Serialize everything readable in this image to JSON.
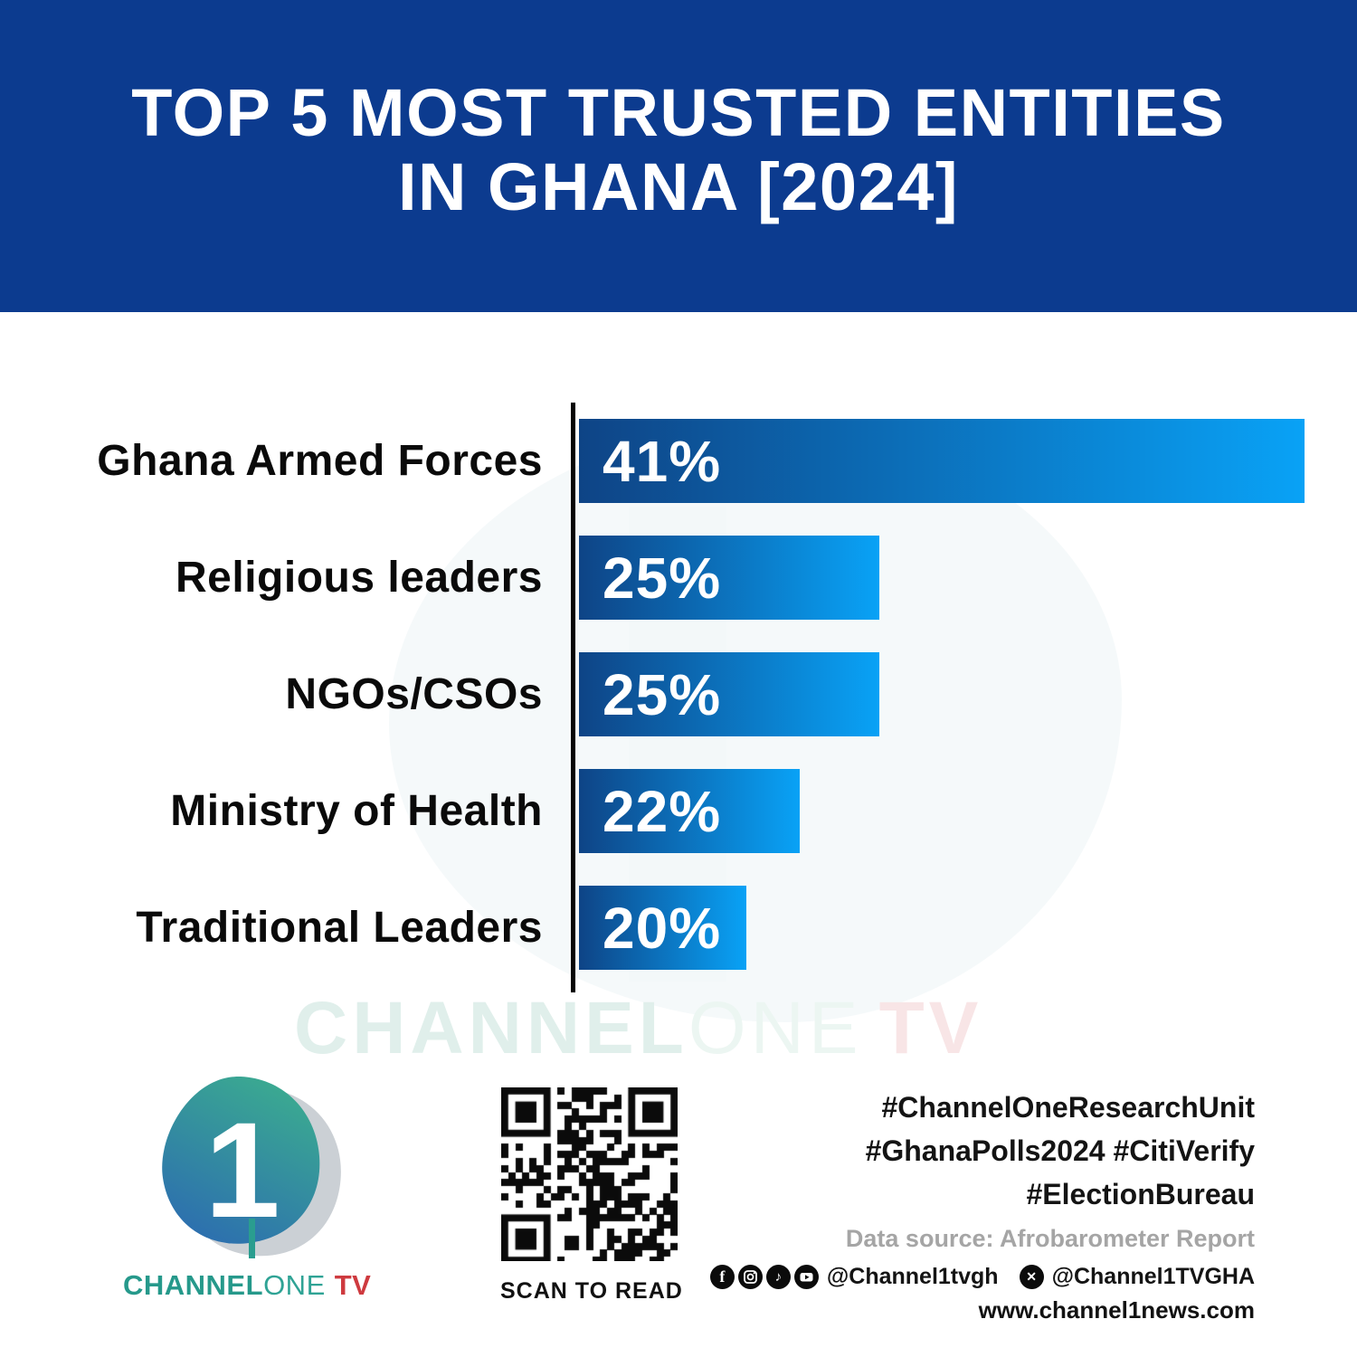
{
  "header": {
    "title_line1": "TOP 5 MOST TRUSTED ENTITIES",
    "title_line2": "IN GHANA [2024]",
    "banner_color": "#0c3b8f",
    "title_color": "#ffffff"
  },
  "chart_data": {
    "type": "bar",
    "orientation": "horizontal",
    "categories": [
      "Ghana Armed Forces",
      "Religious leaders",
      "NGOs/CSOs",
      "Ministry of Health",
      "Traditional Leaders"
    ],
    "values": [
      41,
      25,
      25,
      22,
      20
    ],
    "unit": "%",
    "value_labels": [
      "41%",
      "25%",
      "25%",
      "22%",
      "20%"
    ],
    "bar_gradient_start": "#0e4486",
    "bar_gradient_end": "#09a2f6",
    "axis_color": "#050505",
    "grid": false,
    "value_axis_hidden": true,
    "legend": "none"
  },
  "watermark": {
    "part1": "CHANNEL",
    "part2": "ONE",
    "part3": "TV"
  },
  "footer": {
    "logo": {
      "icon_name": "channel-one-pebble-logo",
      "channel": "CHANNEL",
      "one": "ONE",
      "tv": "TV",
      "teal": "#26998b",
      "red": "#ce3a3f"
    },
    "qr_caption": "SCAN TO READ",
    "hashtags": [
      "#ChannelOneResearchUnit",
      "#GhanaPolls2024 #CitiVerify",
      "#ElectionBureau"
    ],
    "data_source": "Data source: Afrobarometer Report",
    "social": {
      "icons": [
        "facebook-icon",
        "instagram-icon",
        "tiktok-icon",
        "youtube-icon"
      ],
      "handle1": "@Channel1tvgh",
      "x_icon": "x-twitter-icon",
      "handle2": "@Channel1TVGHA"
    },
    "website": "www.channel1news.com"
  }
}
